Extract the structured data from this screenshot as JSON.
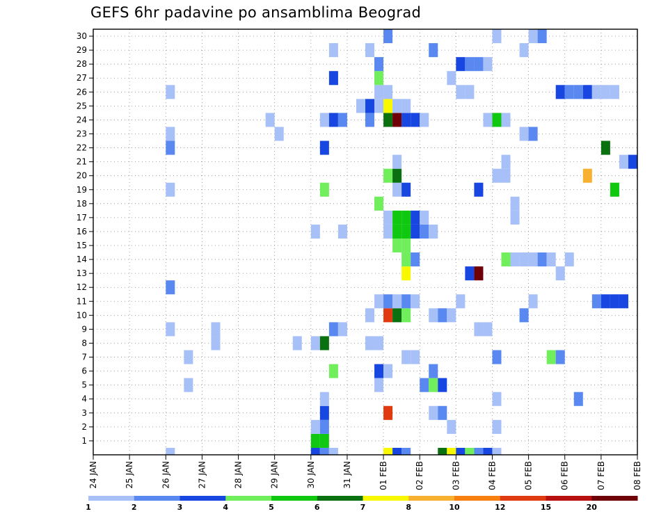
{
  "chart_data": {
    "type": "heatmap",
    "title": "GEFS 6hr padavine po ansamblima Beograd",
    "xlabel": "",
    "ylabel": "",
    "x_start": "2024-01-24",
    "x_end": "2024-02-08",
    "x_tick_labels": [
      "24 JAN",
      "25 JAN",
      "26 JAN",
      "27 JAN",
      "28 JAN",
      "29 JAN",
      "30 JAN",
      "31 JAN",
      "01 FEB",
      "02 FEB",
      "03 FEB",
      "04 FEB",
      "05 FEB",
      "06 FEB",
      "07 FEB",
      "08 FEB"
    ],
    "y_tick_labels": [
      "1",
      "2",
      "3",
      "4",
      "5",
      "6",
      "7",
      "8",
      "9",
      "10",
      "11",
      "12",
      "13",
      "14",
      "15",
      "16",
      "17",
      "18",
      "19",
      "20",
      "21",
      "22",
      "23",
      "24",
      "25",
      "26",
      "27",
      "28",
      "29",
      "30"
    ],
    "grid": true,
    "colorbar": {
      "tick_labels": [
        "1",
        "2",
        "3",
        "4",
        "5",
        "6",
        "7",
        "8",
        "10",
        "12",
        "15",
        "20"
      ],
      "colors": [
        "#a8c0f8",
        "#5888f0",
        "#1846e0",
        "#70ee5c",
        "#10c810",
        "#0a7010",
        "#f8f800",
        "#f8b030",
        "#f88010",
        "#e03a10",
        "#b81010",
        "#700008"
      ]
    },
    "cells": [
      {
        "t": "2024-01-30 00",
        "m": 0,
        "c": 3
      },
      {
        "t": "2024-01-30 06",
        "m": 0,
        "c": 2
      },
      {
        "t": "2024-01-30 12",
        "m": 0,
        "c": 1
      },
      {
        "t": "2024-02-01 00",
        "m": 0,
        "c": 7
      },
      {
        "t": "2024-02-01 06",
        "m": 0,
        "c": 3
      },
      {
        "t": "2024-02-01 12",
        "m": 0,
        "c": 2
      },
      {
        "t": "2024-02-02 12",
        "m": 0,
        "c": 6
      },
      {
        "t": "2024-02-02 18",
        "m": 0,
        "c": 7
      },
      {
        "t": "2024-02-03 00",
        "m": 0,
        "c": 3
      },
      {
        "t": "2024-02-03 06",
        "m": 0,
        "c": 4
      },
      {
        "t": "2024-02-03 12",
        "m": 0,
        "c": 2
      },
      {
        "t": "2024-02-03 18",
        "m": 0,
        "c": 3
      },
      {
        "t": "2024-02-04 00",
        "m": 0,
        "c": 1
      },
      {
        "t": "2024-01-26 00",
        "m": 0,
        "c": 1
      },
      {
        "t": "2024-01-30 00",
        "m": 1,
        "c": 5
      },
      {
        "t": "2024-01-30 06",
        "m": 1,
        "c": 5
      },
      {
        "t": "2024-01-30 00",
        "m": 2,
        "c": 1
      },
      {
        "t": "2024-01-30 06",
        "m": 2,
        "c": 2
      },
      {
        "t": "2024-02-02 18",
        "m": 2,
        "c": 1
      },
      {
        "t": "2024-02-04 00",
        "m": 2,
        "c": 1
      },
      {
        "t": "2024-01-30 06",
        "m": 3,
        "c": 3
      },
      {
        "t": "2024-02-01 00",
        "m": 3,
        "c": 10
      },
      {
        "t": "2024-02-02 06",
        "m": 3,
        "c": 1
      },
      {
        "t": "2024-02-02 12",
        "m": 3,
        "c": 2
      },
      {
        "t": "2024-01-30 06",
        "m": 4,
        "c": 1
      },
      {
        "t": "2024-02-04 00",
        "m": 4,
        "c": 1
      },
      {
        "t": "2024-02-06 06",
        "m": 4,
        "c": 2
      },
      {
        "t": "2024-01-26 12",
        "m": 5,
        "c": 1
      },
      {
        "t": "2024-01-31 18",
        "m": 5,
        "c": 1
      },
      {
        "t": "2024-02-02 00",
        "m": 5,
        "c": 2
      },
      {
        "t": "2024-02-02 06",
        "m": 5,
        "c": 4
      },
      {
        "t": "2024-02-02 12",
        "m": 5,
        "c": 3
      },
      {
        "t": "2024-01-30 12",
        "m": 6,
        "c": 4
      },
      {
        "t": "2024-01-31 18",
        "m": 6,
        "c": 3
      },
      {
        "t": "2024-02-01 00",
        "m": 6,
        "c": 1
      },
      {
        "t": "2024-02-02 06",
        "m": 6,
        "c": 2
      },
      {
        "t": "2024-02-08 00",
        "m": 6,
        "c": 2
      },
      {
        "t": "2024-01-26 12",
        "m": 7,
        "c": 1
      },
      {
        "t": "2024-02-01 12",
        "m": 7,
        "c": 1
      },
      {
        "t": "2024-02-01 18",
        "m": 7,
        "c": 1
      },
      {
        "t": "2024-02-04 00",
        "m": 7,
        "c": 2
      },
      {
        "t": "2024-02-05 12",
        "m": 7,
        "c": 4
      },
      {
        "t": "2024-02-05 18",
        "m": 7,
        "c": 2
      },
      {
        "t": "2024-01-27 06",
        "m": 8,
        "c": 1
      },
      {
        "t": "2024-01-29 12",
        "m": 8,
        "c": 1
      },
      {
        "t": "2024-01-30 00",
        "m": 8,
        "c": 1
      },
      {
        "t": "2024-01-30 06",
        "m": 8,
        "c": 6
      },
      {
        "t": "2024-01-31 12",
        "m": 8,
        "c": 1
      },
      {
        "t": "2024-01-31 18",
        "m": 8,
        "c": 1
      },
      {
        "t": "2024-01-26 00",
        "m": 9,
        "c": 1
      },
      {
        "t": "2024-01-27 06",
        "m": 9,
        "c": 1
      },
      {
        "t": "2024-01-30 12",
        "m": 9,
        "c": 2
      },
      {
        "t": "2024-01-30 18",
        "m": 9,
        "c": 1
      },
      {
        "t": "2024-02-03 12",
        "m": 9,
        "c": 1
      },
      {
        "t": "2024-02-03 18",
        "m": 9,
        "c": 1
      },
      {
        "t": "2024-01-31 12",
        "m": 10,
        "c": 1
      },
      {
        "t": "2024-02-01 00",
        "m": 10,
        "c": 10
      },
      {
        "t": "2024-02-01 06",
        "m": 10,
        "c": 6
      },
      {
        "t": "2024-02-01 12",
        "m": 10,
        "c": 4
      },
      {
        "t": "2024-02-02 06",
        "m": 10,
        "c": 1
      },
      {
        "t": "2024-02-02 12",
        "m": 10,
        "c": 2
      },
      {
        "t": "2024-02-02 18",
        "m": 10,
        "c": 1
      },
      {
        "t": "2024-02-04 18",
        "m": 10,
        "c": 2
      },
      {
        "t": "2024-01-31 18",
        "m": 11,
        "c": 1
      },
      {
        "t": "2024-02-01 00",
        "m": 11,
        "c": 2
      },
      {
        "t": "2024-02-01 06",
        "m": 11,
        "c": 1
      },
      {
        "t": "2024-02-01 12",
        "m": 11,
        "c": 2
      },
      {
        "t": "2024-02-01 18",
        "m": 11,
        "c": 1
      },
      {
        "t": "2024-02-03 00",
        "m": 11,
        "c": 1
      },
      {
        "t": "2024-02-05 00",
        "m": 11,
        "c": 1
      },
      {
        "t": "2024-02-06 18",
        "m": 11,
        "c": 2
      },
      {
        "t": "2024-02-07 00",
        "m": 11,
        "c": 3
      },
      {
        "t": "2024-02-07 06",
        "m": 11,
        "c": 3
      },
      {
        "t": "2024-02-07 12",
        "m": 11,
        "c": 3
      },
      {
        "t": "2024-01-26 00",
        "m": 12,
        "c": 2
      },
      {
        "t": "2024-02-03 06",
        "m": 13,
        "c": 3
      },
      {
        "t": "2024-02-03 12",
        "m": 13,
        "c": 12
      },
      {
        "t": "2024-02-01 12",
        "m": 13,
        "c": 7
      },
      {
        "t": "2024-02-05 18",
        "m": 13,
        "c": 1
      },
      {
        "t": "2024-02-01 12",
        "m": 14,
        "c": 4
      },
      {
        "t": "2024-02-01 18",
        "m": 14,
        "c": 2
      },
      {
        "t": "2024-02-04 06",
        "m": 14,
        "c": 4
      },
      {
        "t": "2024-02-04 12",
        "m": 14,
        "c": 1
      },
      {
        "t": "2024-02-04 18",
        "m": 14,
        "c": 1
      },
      {
        "t": "2024-02-05 00",
        "m": 14,
        "c": 1
      },
      {
        "t": "2024-02-05 06",
        "m": 14,
        "c": 2
      },
      {
        "t": "2024-02-05 12",
        "m": 14,
        "c": 1
      },
      {
        "t": "2024-02-06 00",
        "m": 14,
        "c": 1
      },
      {
        "t": "2024-02-01 06",
        "m": 15,
        "c": 4
      },
      {
        "t": "2024-02-01 12",
        "m": 15,
        "c": 4
      },
      {
        "t": "2024-01-30 00",
        "m": 16,
        "c": 1
      },
      {
        "t": "2024-01-30 18",
        "m": 16,
        "c": 1
      },
      {
        "t": "2024-02-01 00",
        "m": 16,
        "c": 1
      },
      {
        "t": "2024-02-01 06",
        "m": 16,
        "c": 5
      },
      {
        "t": "2024-02-01 12",
        "m": 16,
        "c": 5
      },
      {
        "t": "2024-02-01 18",
        "m": 16,
        "c": 3
      },
      {
        "t": "2024-02-02 00",
        "m": 16,
        "c": 2
      },
      {
        "t": "2024-02-02 06",
        "m": 16,
        "c": 1
      },
      {
        "t": "2024-02-01 00",
        "m": 17,
        "c": 1
      },
      {
        "t": "2024-02-01 06",
        "m": 17,
        "c": 5
      },
      {
        "t": "2024-02-01 12",
        "m": 17,
        "c": 5
      },
      {
        "t": "2024-02-01 18",
        "m": 17,
        "c": 3
      },
      {
        "t": "2024-02-02 00",
        "m": 17,
        "c": 1
      },
      {
        "t": "2024-02-04 12",
        "m": 17,
        "c": 1
      },
      {
        "t": "2024-01-31 18",
        "m": 18,
        "c": 4
      },
      {
        "t": "2024-02-04 12",
        "m": 18,
        "c": 1
      },
      {
        "t": "2024-01-26 00",
        "m": 19,
        "c": 1
      },
      {
        "t": "2024-01-30 06",
        "m": 19,
        "c": 4
      },
      {
        "t": "2024-02-01 06",
        "m": 19,
        "c": 1
      },
      {
        "t": "2024-02-01 12",
        "m": 19,
        "c": 3
      },
      {
        "t": "2024-02-03 12",
        "m": 19,
        "c": 3
      },
      {
        "t": "2024-02-07 06",
        "m": 19,
        "c": 5
      },
      {
        "t": "2024-02-01 00",
        "m": 20,
        "c": 4
      },
      {
        "t": "2024-02-01 06",
        "m": 20,
        "c": 6
      },
      {
        "t": "2024-02-04 00",
        "m": 20,
        "c": 1
      },
      {
        "t": "2024-02-04 06",
        "m": 20,
        "c": 1
      },
      {
        "t": "2024-02-06 12",
        "m": 20,
        "c": 8
      },
      {
        "t": "2024-02-01 06",
        "m": 21,
        "c": 1
      },
      {
        "t": "2024-02-04 06",
        "m": 21,
        "c": 1
      },
      {
        "t": "2024-02-07 12",
        "m": 21,
        "c": 1
      },
      {
        "t": "2024-02-07 18",
        "m": 21,
        "c": 3
      },
      {
        "t": "2024-01-26 00",
        "m": 22,
        "c": 2
      },
      {
        "t": "2024-01-30 06",
        "m": 22,
        "c": 3
      },
      {
        "t": "2024-02-07 00",
        "m": 22,
        "c": 6
      },
      {
        "t": "2024-01-26 00",
        "m": 23,
        "c": 1
      },
      {
        "t": "2024-01-29 00",
        "m": 23,
        "c": 1
      },
      {
        "t": "2024-02-04 18",
        "m": 23,
        "c": 1
      },
      {
        "t": "2024-02-05 00",
        "m": 23,
        "c": 2
      },
      {
        "t": "2024-01-28 18",
        "m": 24,
        "c": 1
      },
      {
        "t": "2024-01-30 06",
        "m": 24,
        "c": 1
      },
      {
        "t": "2024-01-30 12",
        "m": 24,
        "c": 3
      },
      {
        "t": "2024-01-30 18",
        "m": 24,
        "c": 2
      },
      {
        "t": "2024-01-31 12",
        "m": 24,
        "c": 2
      },
      {
        "t": "2024-02-01 00",
        "m": 24,
        "c": 6
      },
      {
        "t": "2024-02-01 06",
        "m": 24,
        "c": 12
      },
      {
        "t": "2024-02-01 12",
        "m": 24,
        "c": 3
      },
      {
        "t": "2024-02-01 18",
        "m": 24,
        "c": 3
      },
      {
        "t": "2024-02-02 00",
        "m": 24,
        "c": 1
      },
      {
        "t": "2024-02-03 18",
        "m": 24,
        "c": 1
      },
      {
        "t": "2024-02-04 00",
        "m": 24,
        "c": 5
      },
      {
        "t": "2024-02-04 06",
        "m": 24,
        "c": 1
      },
      {
        "t": "2024-01-31 06",
        "m": 25,
        "c": 1
      },
      {
        "t": "2024-01-31 12",
        "m": 25,
        "c": 3
      },
      {
        "t": "2024-01-31 18",
        "m": 25,
        "c": 1
      },
      {
        "t": "2024-02-01 00",
        "m": 25,
        "c": 7
      },
      {
        "t": "2024-02-01 06",
        "m": 25,
        "c": 1
      },
      {
        "t": "2024-02-01 12",
        "m": 25,
        "c": 1
      },
      {
        "t": "2024-01-26 00",
        "m": 26,
        "c": 1
      },
      {
        "t": "2024-01-31 18",
        "m": 26,
        "c": 1
      },
      {
        "t": "2024-02-01 00",
        "m": 26,
        "c": 1
      },
      {
        "t": "2024-02-03 00",
        "m": 26,
        "c": 1
      },
      {
        "t": "2024-02-03 06",
        "m": 26,
        "c": 1
      },
      {
        "t": "2024-02-05 18",
        "m": 26,
        "c": 3
      },
      {
        "t": "2024-02-06 00",
        "m": 26,
        "c": 2
      },
      {
        "t": "2024-02-06 06",
        "m": 26,
        "c": 2
      },
      {
        "t": "2024-02-06 12",
        "m": 26,
        "c": 3
      },
      {
        "t": "2024-02-06 18",
        "m": 26,
        "c": 1
      },
      {
        "t": "2024-02-07 00",
        "m": 26,
        "c": 1
      },
      {
        "t": "2024-02-07 06",
        "m": 26,
        "c": 1
      },
      {
        "t": "2024-01-30 12",
        "m": 27,
        "c": 3
      },
      {
        "t": "2024-01-31 18",
        "m": 27,
        "c": 4
      },
      {
        "t": "2024-02-02 18",
        "m": 27,
        "c": 1
      },
      {
        "t": "2024-01-31 18",
        "m": 28,
        "c": 2
      },
      {
        "t": "2024-02-03 00",
        "m": 28,
        "c": 3
      },
      {
        "t": "2024-02-03 06",
        "m": 28,
        "c": 2
      },
      {
        "t": "2024-02-03 12",
        "m": 28,
        "c": 2
      },
      {
        "t": "2024-02-03 18",
        "m": 28,
        "c": 1
      },
      {
        "t": "2024-01-30 12",
        "m": 29,
        "c": 1
      },
      {
        "t": "2024-01-31 12",
        "m": 29,
        "c": 1
      },
      {
        "t": "2024-02-02 06",
        "m": 29,
        "c": 2
      },
      {
        "t": "2024-02-04 18",
        "m": 29,
        "c": 1
      },
      {
        "t": "2024-02-01 00",
        "m": 30,
        "c": 2
      },
      {
        "t": "2024-02-04 00",
        "m": 30,
        "c": 1
      },
      {
        "t": "2024-02-05 00",
        "m": 30,
        "c": 1
      },
      {
        "t": "2024-02-05 06",
        "m": 30,
        "c": 2
      }
    ]
  }
}
